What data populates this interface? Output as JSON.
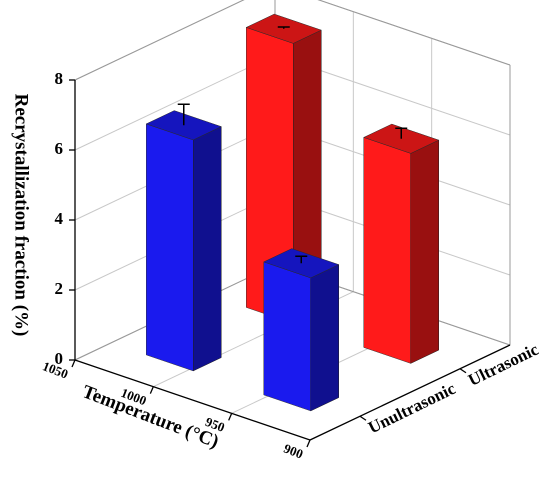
{
  "chart_data": {
    "type": "bar3d",
    "ylabel": "Recrystallization fraction (%)",
    "xlabel": "Temperature (°C)",
    "x": [
      1012.5,
      937.5
    ],
    "xlim": [
      1050,
      900
    ],
    "xticks": [
      1050,
      1000,
      950,
      900
    ],
    "ylim": [
      0,
      8
    ],
    "yticks": [
      0,
      2,
      4,
      6,
      8
    ],
    "grid": true,
    "series": [
      {
        "name": "Unultrasonic",
        "color": "#1a1aee",
        "values": [
          6.6,
          3.8
        ],
        "errors": [
          0.6,
          0.2
        ]
      },
      {
        "name": "Ultrasonic",
        "color": "#ff1a1a",
        "values": [
          8.0,
          6.0
        ],
        "errors": [
          0.05,
          0.3
        ]
      }
    ]
  }
}
